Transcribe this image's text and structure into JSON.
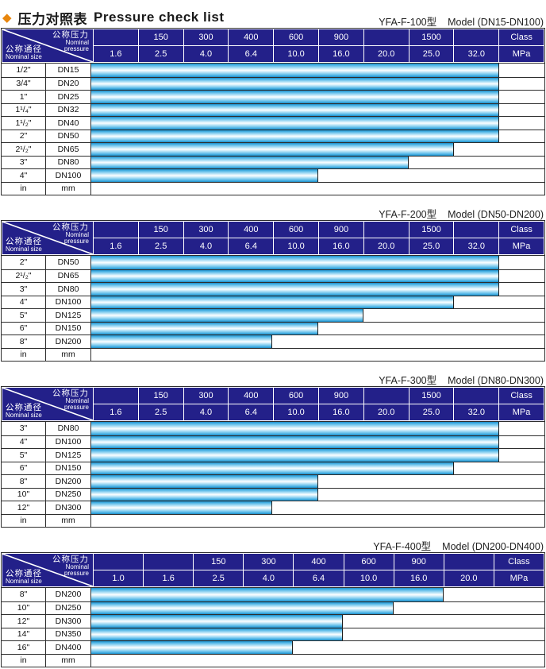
{
  "title": {
    "diamond": "◆",
    "zh": "压力对照表",
    "en": "Pressure check list"
  },
  "corner": {
    "top_zh": "公称压力",
    "top_en1": "Nominal",
    "top_en2": "pressure",
    "bottom_zh": "公称通径",
    "bottom_en": "Nominal size"
  },
  "colors": {
    "header_bg": "#232089",
    "bar_cyan": "#2BA3DC",
    "bar_highlight": "#FBFEFF",
    "title_diamond": "#E8860D",
    "grid_line": "#2E2E2E"
  },
  "tables": [
    {
      "caption_model": "YFA-F-100型",
      "caption_range": "Model (DN15-DN100)",
      "class_row": [
        "",
        "150",
        "300",
        "400",
        "600",
        "900",
        "",
        "1500",
        "",
        "Class"
      ],
      "mpa_row": [
        "1.6",
        "2.5",
        "4.0",
        "6.4",
        "10.0",
        "16.0",
        "20.0",
        "25.0",
        "32.0",
        "MPa"
      ],
      "rows": [
        {
          "size": "1/2\"",
          "dn": "DN15",
          "bar_cols": 9
        },
        {
          "size": "3/4\"",
          "dn": "DN20",
          "bar_cols": 9
        },
        {
          "size": "1\"",
          "dn": "DN25",
          "bar_cols": 9
        },
        {
          "size": "1¹/₄\"",
          "dn": "DN32",
          "bar_cols": 9
        },
        {
          "size": "1¹/₂\"",
          "dn": "DN40",
          "bar_cols": 9
        },
        {
          "size": "2\"",
          "dn": "DN50",
          "bar_cols": 9
        },
        {
          "size": "2¹/₂\"",
          "dn": "DN65",
          "bar_cols": 8
        },
        {
          "size": "3\"",
          "dn": "DN80",
          "bar_cols": 7
        },
        {
          "size": "4\"",
          "dn": "DN100",
          "bar_cols": 5
        },
        {
          "size": "in",
          "dn": "mm",
          "bar_cols": 0
        }
      ]
    },
    {
      "caption_model": "YFA-F-200型",
      "caption_range": "Model (DN50-DN200)",
      "class_row": [
        "",
        "150",
        "300",
        "400",
        "600",
        "900",
        "",
        "1500",
        "",
        "Class"
      ],
      "mpa_row": [
        "1.6",
        "2.5",
        "4.0",
        "6.4",
        "10.0",
        "16.0",
        "20.0",
        "25.0",
        "32.0",
        "MPa"
      ],
      "rows": [
        {
          "size": "2\"",
          "dn": "DN50",
          "bar_cols": 9
        },
        {
          "size": "2¹/₂\"",
          "dn": "DN65",
          "bar_cols": 9
        },
        {
          "size": "3\"",
          "dn": "DN80",
          "bar_cols": 9
        },
        {
          "size": "4\"",
          "dn": "DN100",
          "bar_cols": 8
        },
        {
          "size": "5\"",
          "dn": "DN125",
          "bar_cols": 6
        },
        {
          "size": "6\"",
          "dn": "DN150",
          "bar_cols": 5
        },
        {
          "size": "8\"",
          "dn": "DN200",
          "bar_cols": 4
        },
        {
          "size": "in",
          "dn": "mm",
          "bar_cols": 0
        }
      ]
    },
    {
      "caption_model": "YFA-F-300型",
      "caption_range": "Model (DN80-DN300)",
      "class_row": [
        "",
        "150",
        "300",
        "400",
        "600",
        "900",
        "",
        "1500",
        "",
        "Class"
      ],
      "mpa_row": [
        "1.6",
        "2.5",
        "4.0",
        "6.4",
        "10.0",
        "16.0",
        "20.0",
        "25.0",
        "32.0",
        "MPa"
      ],
      "rows": [
        {
          "size": "3\"",
          "dn": "DN80",
          "bar_cols": 9
        },
        {
          "size": "4\"",
          "dn": "DN100",
          "bar_cols": 9
        },
        {
          "size": "5\"",
          "dn": "DN125",
          "bar_cols": 9
        },
        {
          "size": "6\"",
          "dn": "DN150",
          "bar_cols": 8
        },
        {
          "size": "8\"",
          "dn": "DN200",
          "bar_cols": 5
        },
        {
          "size": "10\"",
          "dn": "DN250",
          "bar_cols": 5
        },
        {
          "size": "12\"",
          "dn": "DN300",
          "bar_cols": 4
        },
        {
          "size": "in",
          "dn": "mm",
          "bar_cols": 0
        }
      ]
    },
    {
      "caption_model": "YFA-F-400型",
      "caption_range": "Model (DN200-DN400)",
      "class_row": [
        "",
        "",
        "150",
        "300",
        "400",
        "600",
        "900",
        "",
        "Class"
      ],
      "mpa_row": [
        "1.0",
        "1.6",
        "2.5",
        "4.0",
        "6.4",
        "10.0",
        "16.0",
        "20.0",
        "MPa"
      ],
      "rows": [
        {
          "size": "8\"",
          "dn": "DN200",
          "bar_cols": 7
        },
        {
          "size": "10\"",
          "dn": "DN250",
          "bar_cols": 6
        },
        {
          "size": "12\"",
          "dn": "DN300",
          "bar_cols": 5
        },
        {
          "size": "14\"",
          "dn": "DN350",
          "bar_cols": 5
        },
        {
          "size": "16\"",
          "dn": "DN400",
          "bar_cols": 4
        },
        {
          "size": "in",
          "dn": "mm",
          "bar_cols": 0
        }
      ]
    }
  ]
}
